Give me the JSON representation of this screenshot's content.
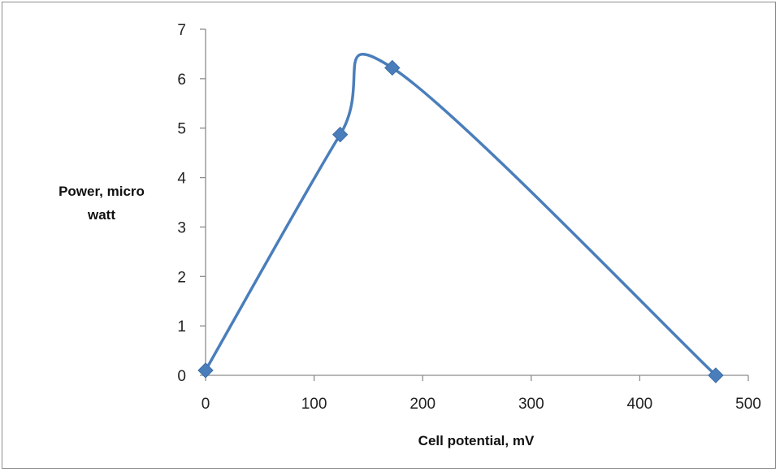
{
  "chart_data": {
    "type": "scatter",
    "title": "",
    "xlabel": "Cell potential,  mV",
    "ylabel": [
      "Power,  micro",
      "watt"
    ],
    "xlim": [
      0,
      500
    ],
    "ylim": [
      0,
      7
    ],
    "x_ticks": [
      0,
      100,
      200,
      300,
      400,
      500
    ],
    "y_ticks": [
      0,
      1,
      2,
      3,
      4,
      5,
      6,
      7
    ],
    "grid": false,
    "legend": "none",
    "line_style": "smoothed",
    "marker": "diamond",
    "series": [
      {
        "color": "#4a7ebb",
        "points": [
          {
            "x": 0,
            "y": 0.1
          },
          {
            "x": 124,
            "y": 4.87
          },
          {
            "x": 172,
            "y": 6.22
          },
          {
            "x": 470,
            "y": 0.0
          }
        ]
      }
    ]
  }
}
